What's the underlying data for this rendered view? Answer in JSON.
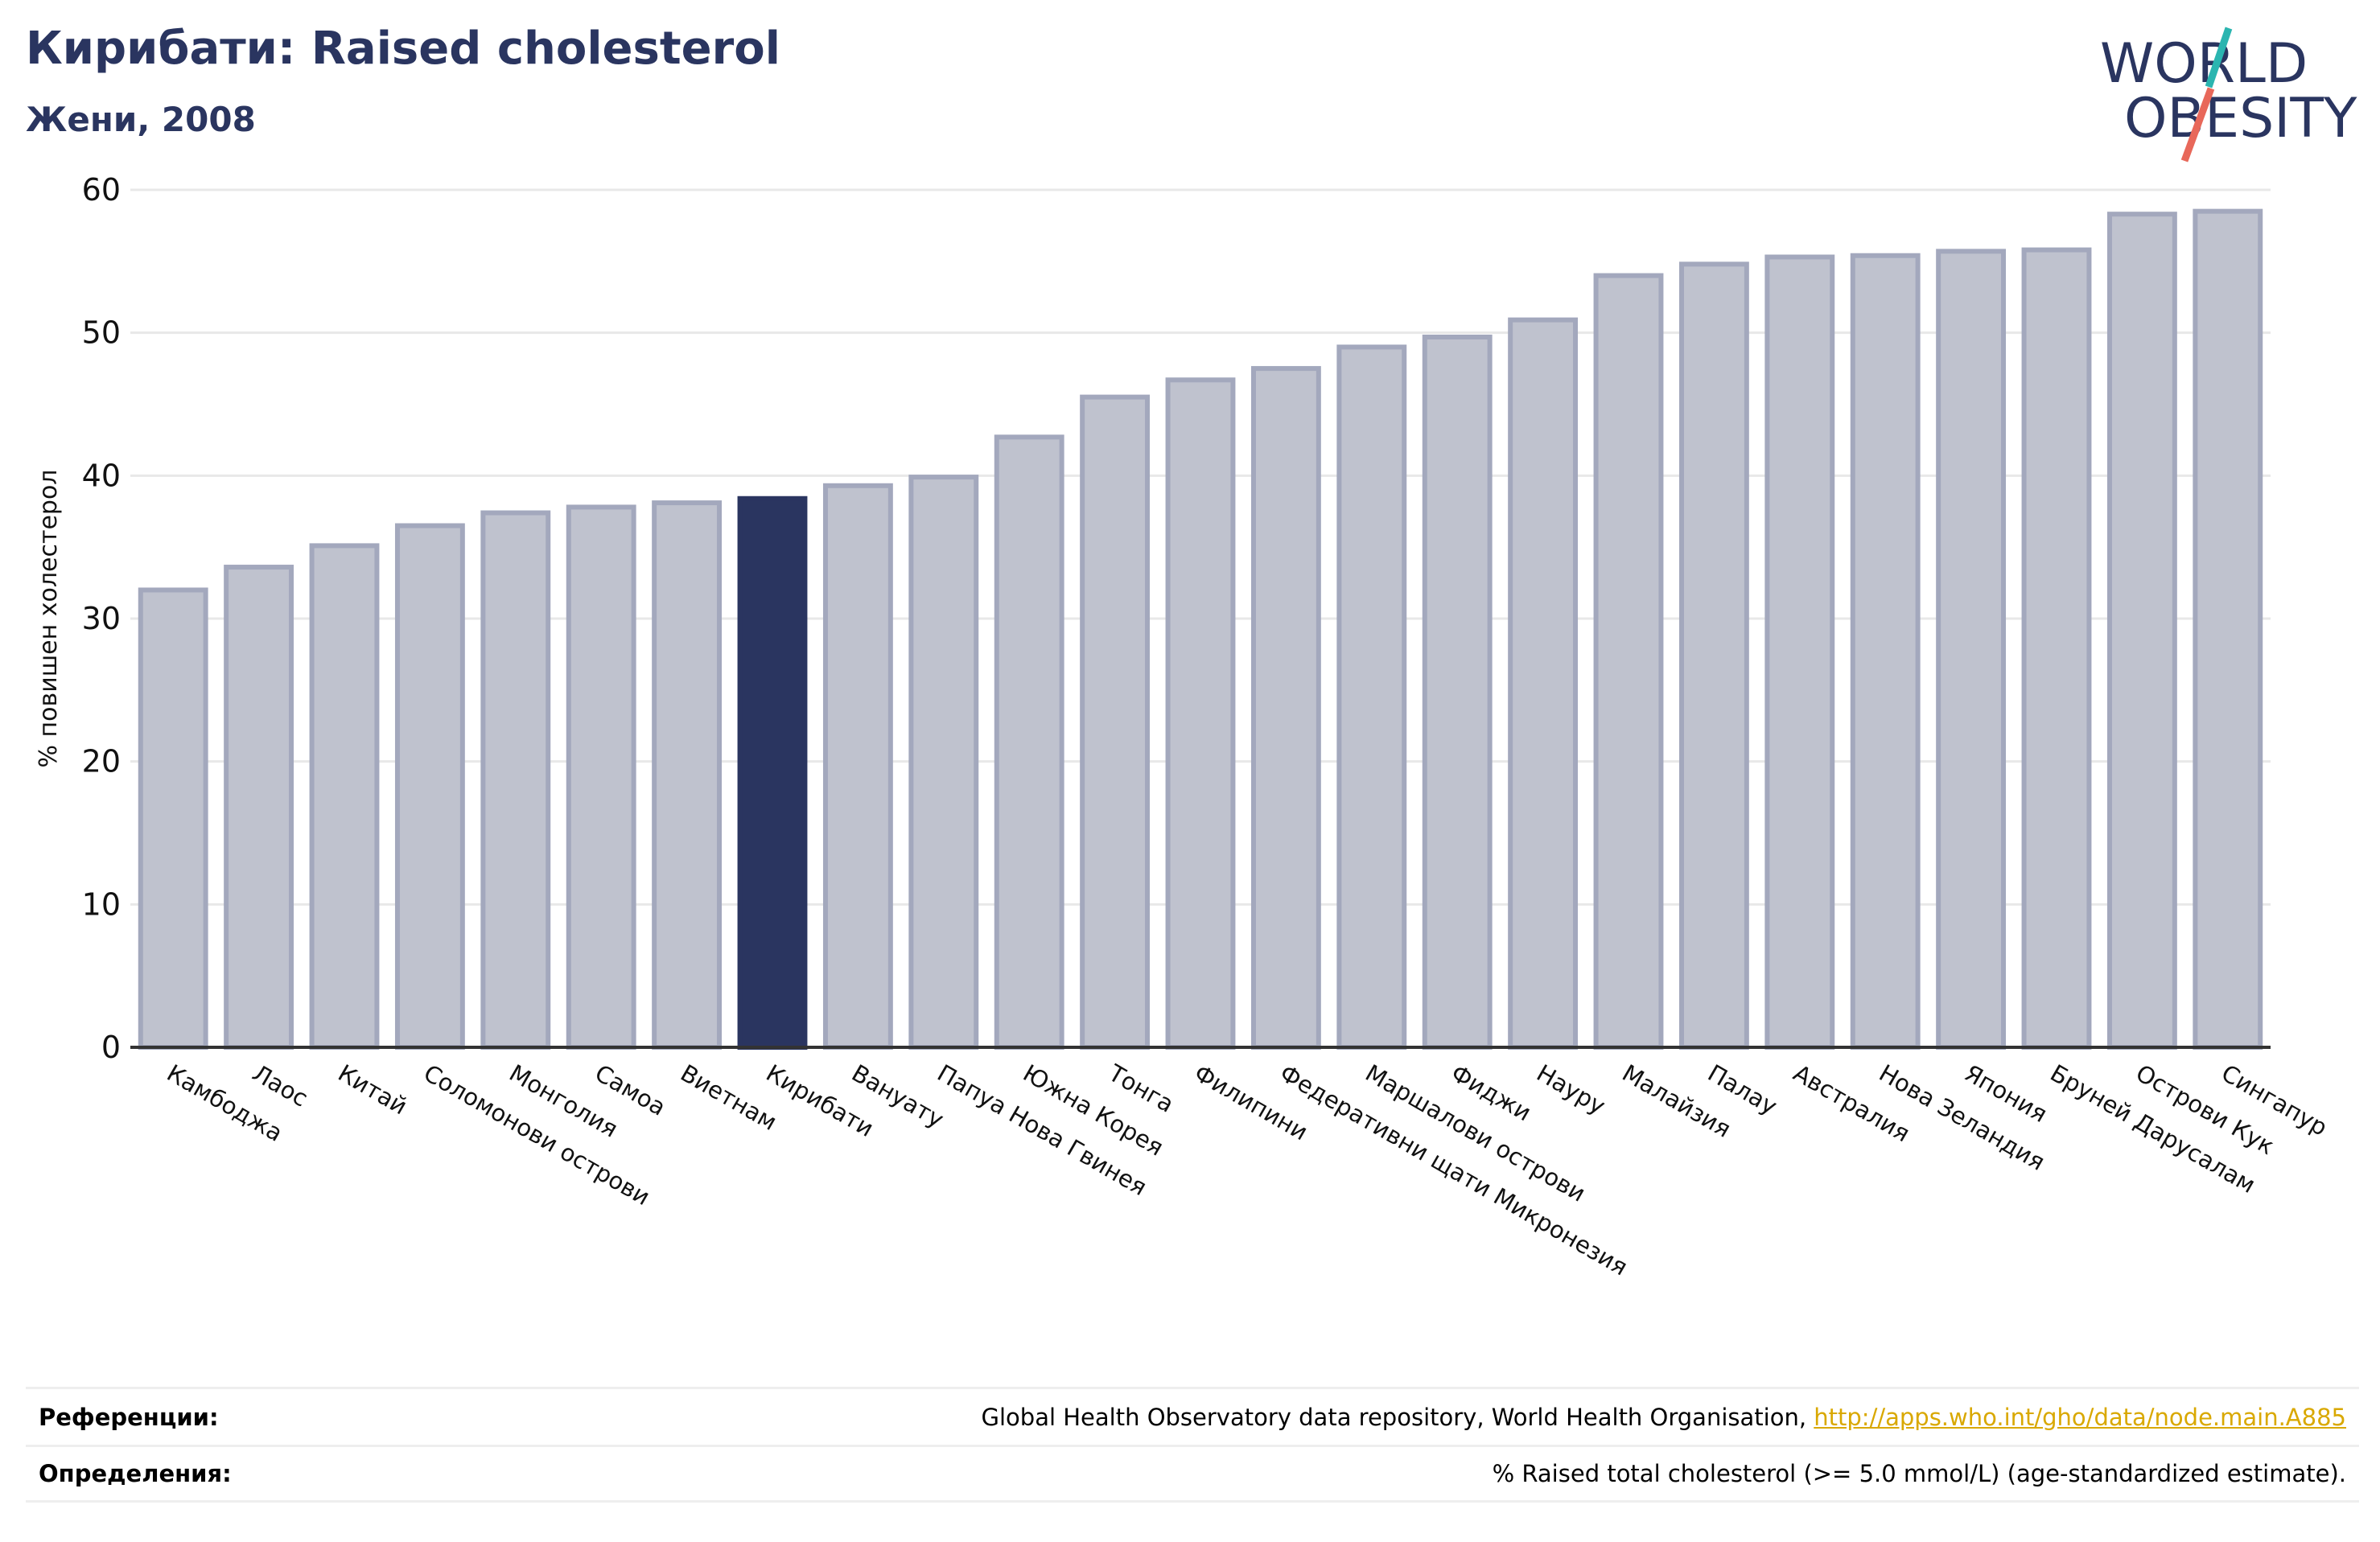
{
  "header": {
    "title": "Кирибати: Raised cholesterol",
    "subtitle": "Жени, 2008"
  },
  "logo": {
    "line1": "WORLD",
    "line2": "OBESITY",
    "colors": {
      "text": "#2a3560",
      "teal": "#2bb5b0",
      "coral": "#e8685a"
    }
  },
  "chart_data": {
    "type": "bar",
    "ylabel": "% повишен холестерол",
    "ylim": [
      0,
      60
    ],
    "yticks": [
      0,
      10,
      20,
      30,
      40,
      50,
      60
    ],
    "grid": true,
    "highlight": "Кирибати",
    "colors": {
      "bar": "#bfc2ce",
      "bar_edge": "#a3a8bd",
      "highlight": "#2a3560"
    },
    "categories": [
      "Камбоджа",
      "Лаос",
      "Китай",
      "Соломонови острови",
      "Монголия",
      "Самоа",
      "Виетнам",
      "Кирибати",
      "Вануату",
      "Папуа Нова Гвинея",
      "Южна Корея",
      "Тонга",
      "Филипини",
      "Федеративни щати Микронезия",
      "Маршалови острови",
      "Фиджи",
      "Науру",
      "Малайзия",
      "Палау",
      "Австралия",
      "Нова Зеландия",
      "Япония",
      "Бруней Дарусалам",
      "Острови Кук",
      "Сингапур"
    ],
    "values": [
      32.0,
      33.6,
      35.1,
      36.5,
      37.4,
      37.8,
      38.1,
      38.4,
      39.3,
      39.9,
      42.7,
      45.5,
      46.7,
      47.5,
      49.0,
      49.7,
      50.9,
      54.0,
      54.8,
      55.3,
      55.4,
      55.7,
      55.8,
      58.3,
      58.5
    ]
  },
  "footer": {
    "references_label": "Референции:",
    "references_text": "Global Health Observatory data repository, World Health Organisation,",
    "references_link": "http://apps.who.int/gho/data/node.main.A885",
    "definitions_label": "Определения:",
    "definitions_text": "% Raised total cholesterol (>= 5.0 mmol/L) (age-standardized estimate)."
  }
}
